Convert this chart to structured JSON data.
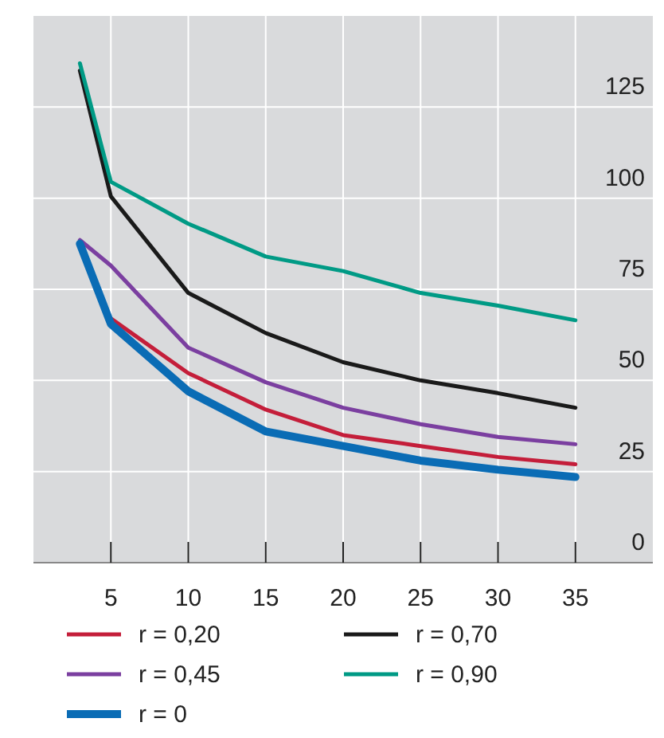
{
  "chart_data": {
    "type": "line",
    "x": [
      3,
      5,
      10,
      15,
      20,
      25,
      30,
      35
    ],
    "xlim": [
      0,
      40
    ],
    "xticks": [
      5,
      10,
      15,
      20,
      25,
      30,
      35
    ],
    "ylim": [
      0,
      150
    ],
    "yticks": [
      0,
      25,
      50,
      75,
      100,
      125
    ],
    "grid": true,
    "legend": "bottom",
    "line_style": "solid",
    "series": [
      {
        "name": "r = 0,20",
        "color": "#c41e3a",
        "values": [
          null,
          67,
          52,
          42,
          35,
          32,
          29,
          27
        ]
      },
      {
        "name": "r = 0,70",
        "color": "#1a1a1a",
        "values": [
          135,
          100.5,
          74,
          63,
          55,
          50,
          46.5,
          42.5
        ]
      },
      {
        "name": "r = 0,45",
        "color": "#7b3fa0",
        "values": [
          88.5,
          81.5,
          59,
          49.5,
          42.5,
          38,
          34.5,
          32.5
        ]
      },
      {
        "name": "r = 0,90",
        "color": "#009a85",
        "values": [
          137,
          104.5,
          93,
          84,
          80,
          74,
          70.5,
          66.5
        ]
      },
      {
        "name": "r = 0",
        "color": "#0a6cb5",
        "values": [
          87.5,
          65.5,
          47,
          36,
          32,
          28,
          25.5,
          23.5
        ]
      }
    ]
  }
}
